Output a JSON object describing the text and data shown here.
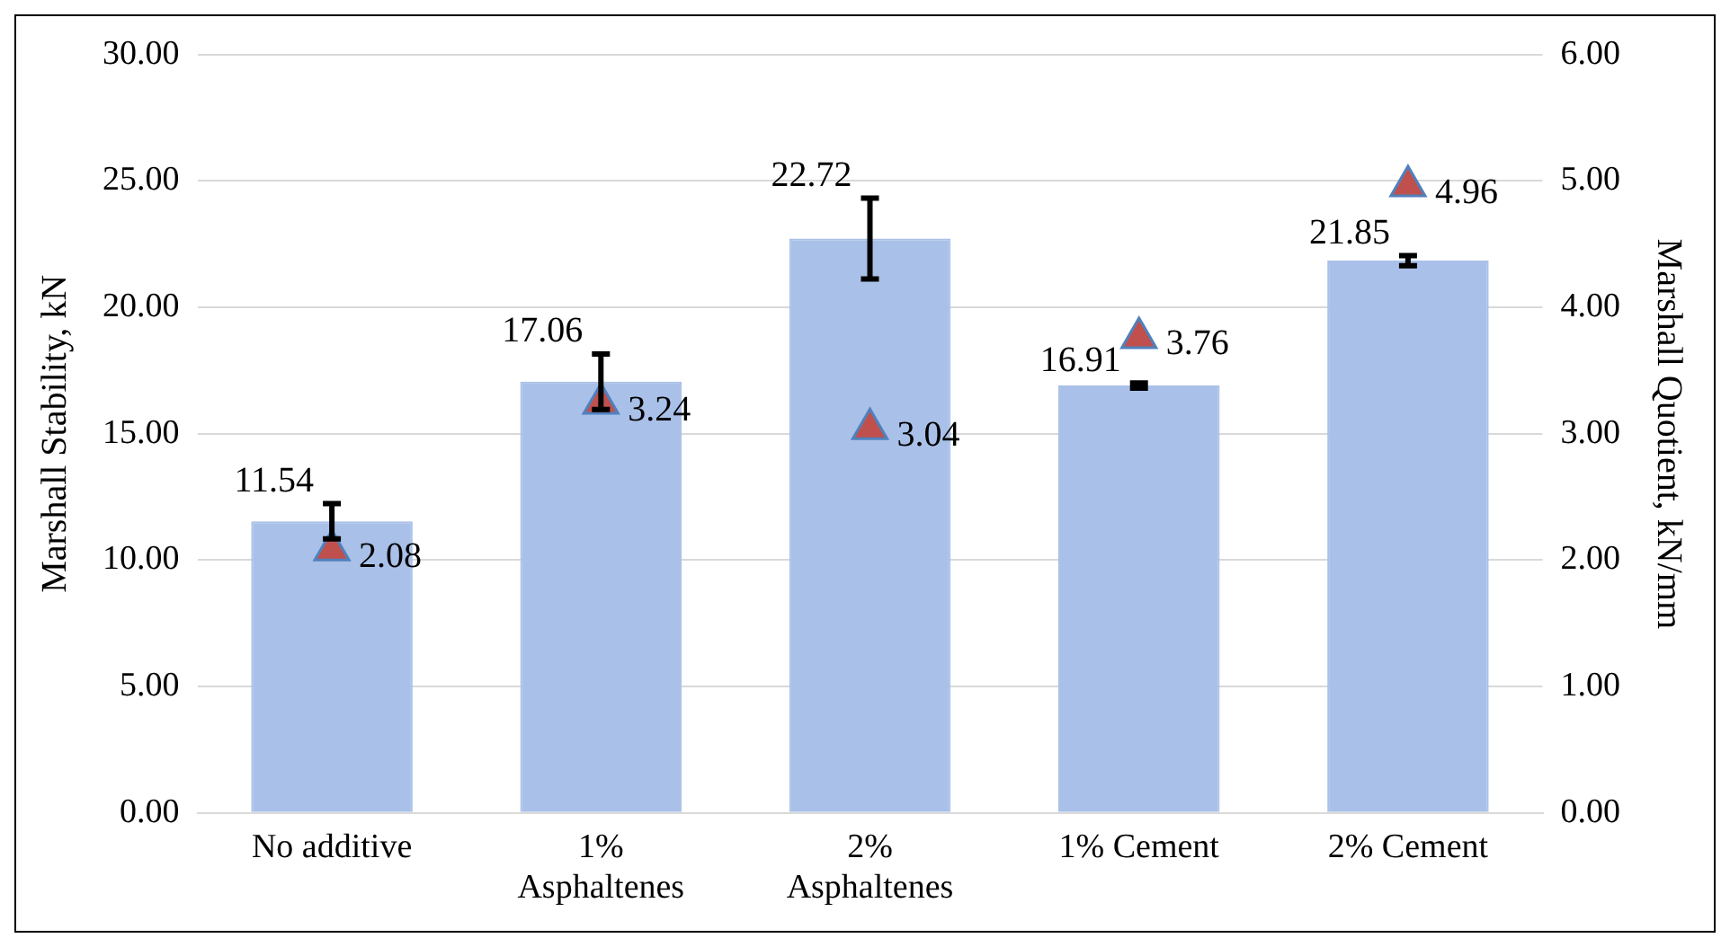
{
  "chart_data": {
    "type": "bar",
    "categories": [
      "No additive",
      "1%\nAsphaltenes",
      "2%\nAsphaltenes",
      "1% Cement",
      "2% Cement"
    ],
    "ylabel": "Marshall Stability, kN",
    "y2label": "Marshall Quotient, kN/mm",
    "series": [
      {
        "color": "#a9c0e8",
        "values": [
          11.54,
          17.06,
          22.72,
          16.91,
          21.85
        ],
        "errors": [
          0.7,
          1.1,
          1.6,
          0.1,
          0.2
        ]
      },
      {
        "type": "scatter",
        "axis": "y2",
        "color": "#c0504d",
        "x": [
          "No additive",
          "1%\nAsphaltenes",
          "2%\nAsphaltenes",
          "1% Cement",
          "2% Cement"
        ],
        "values": [
          2.08,
          3.24,
          3.04,
          3.76,
          4.96
        ]
      }
    ],
    "ylim": [
      0,
      30
    ],
    "yticks": [
      {
        "value": 0,
        "label": "0.00"
      },
      {
        "value": 5,
        "label": "5.00"
      },
      {
        "value": 10,
        "label": "10.00"
      },
      {
        "value": 15,
        "label": "15.00"
      },
      {
        "value": 20,
        "label": "20.00"
      },
      {
        "value": 25,
        "label": "25.00"
      },
      {
        "value": 30,
        "label": "30.00"
      }
    ],
    "y2lim": [
      0,
      6
    ],
    "y2ticks": [
      {
        "value": 0,
        "label": "0.00"
      },
      {
        "value": 1,
        "label": "1.00"
      },
      {
        "value": 2,
        "label": "2.00"
      },
      {
        "value": 3,
        "label": "3.00"
      },
      {
        "value": 4,
        "label": "4.00"
      },
      {
        "value": 5,
        "label": "5.00"
      },
      {
        "value": 6,
        "label": "6.00"
      }
    ],
    "grid": "y",
    "legend": false,
    "marker": "triangle",
    "data_labels": true
  }
}
